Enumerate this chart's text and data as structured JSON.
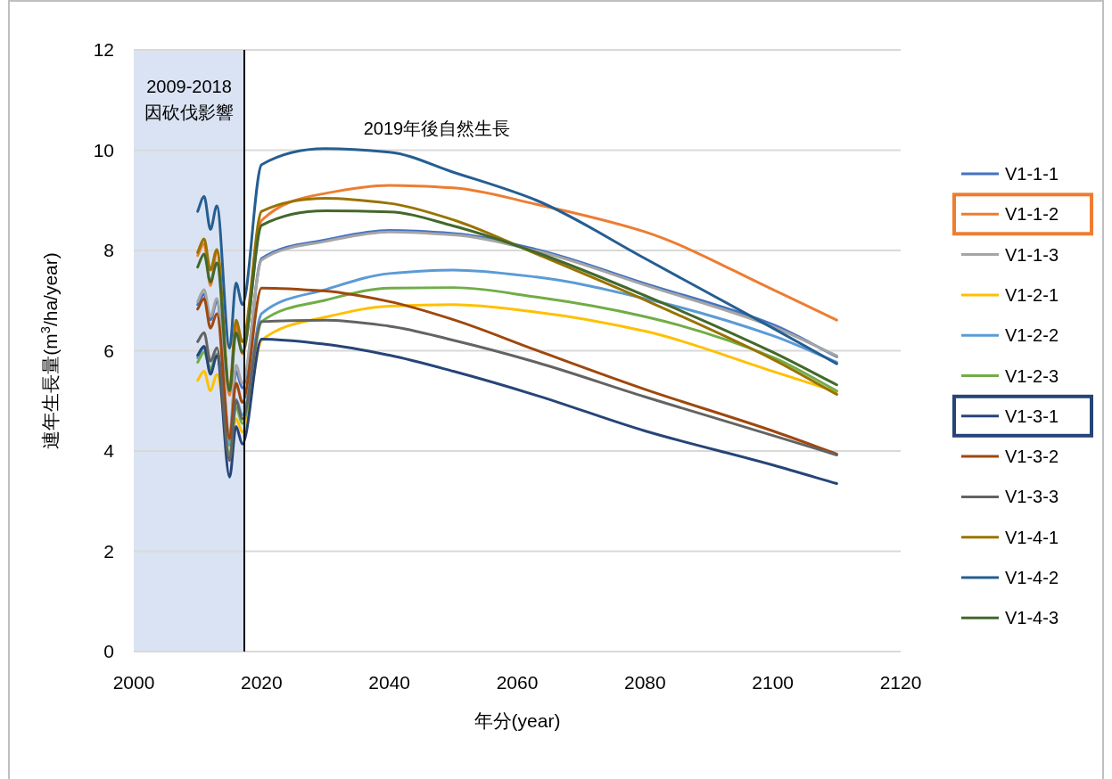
{
  "chart_data": {
    "type": "line",
    "xlabel": "年分(year)",
    "ylabel": "連年生長量(m$^{3}$/ha/year)",
    "x": [
      2010,
      2011,
      2012,
      2013,
      2015,
      2016,
      2017,
      2020,
      2030,
      2040,
      2050,
      2063,
      2080,
      2100,
      2110
    ],
    "xlim": [
      2000,
      2120
    ],
    "xticks": [
      2000,
      2020,
      2040,
      2060,
      2080,
      2100,
      2120
    ],
    "ylim": [
      0,
      12
    ],
    "yticks": [
      0,
      2,
      4,
      6,
      8,
      10,
      12
    ],
    "grid": "y",
    "legend": "right",
    "marker": "none",
    "line_style": "solid",
    "bands": [
      {
        "axis": "x",
        "from": 2000,
        "to": 2017.3,
        "label": "2009-2018 因砍伐影響",
        "color": "#dae3f3"
      }
    ],
    "ref_lines": [
      {
        "axis": "x",
        "value": 2017.3,
        "color": "#000000"
      }
    ],
    "annotations": [
      "2019年後自然生長"
    ],
    "series": [
      {
        "name": "V1-1-1",
        "color": "#4472c4",
        "values": [
          6.92,
          7.13,
          6.62,
          6.98,
          4.22,
          5.59,
          5.26,
          7.84,
          8.21,
          8.4,
          8.34,
          8.02,
          7.34,
          6.52,
          5.88
        ]
      },
      {
        "name": "V1-1-2",
        "color": "#ed7d31",
        "values": [
          7.9,
          8.14,
          7.3,
          7.99,
          5.11,
          6.5,
          5.94,
          8.6,
          9.14,
          9.3,
          9.25,
          8.92,
          8.37,
          7.22,
          6.61
        ]
      },
      {
        "name": "V1-1-3",
        "color": "#a5a5a5",
        "values": [
          6.98,
          7.22,
          6.68,
          7.04,
          4.34,
          5.71,
          5.35,
          7.81,
          8.18,
          8.37,
          8.31,
          7.99,
          7.31,
          6.48,
          5.9
        ]
      },
      {
        "name": "V1-2-1",
        "color": "#ffc000",
        "values": [
          5.41,
          5.59,
          5.2,
          5.53,
          4.11,
          4.64,
          4.38,
          6.21,
          6.67,
          6.89,
          6.92,
          6.77,
          6.39,
          5.59,
          5.18
        ]
      },
      {
        "name": "V1-2-2",
        "color": "#5b9bd5",
        "values": [
          5.86,
          6.06,
          5.62,
          5.94,
          4.11,
          5.03,
          4.72,
          6.74,
          7.22,
          7.54,
          7.61,
          7.47,
          7.04,
          6.3,
          5.77
        ]
      },
      {
        "name": "V1-2-3",
        "color": "#70ad47",
        "values": [
          5.77,
          5.97,
          5.65,
          5.91,
          3.93,
          4.88,
          4.55,
          6.58,
          7.01,
          7.25,
          7.26,
          7.07,
          6.68,
          5.87,
          5.2
        ]
      },
      {
        "name": "V1-3-1",
        "color": "#264478",
        "values": [
          5.91,
          6.09,
          5.53,
          5.9,
          3.48,
          4.49,
          4.14,
          6.23,
          6.13,
          5.91,
          5.59,
          5.11,
          4.4,
          3.72,
          3.35
        ]
      },
      {
        "name": "V1-3-2",
        "color": "#9e480e",
        "values": [
          6.83,
          7.04,
          6.45,
          6.74,
          4.25,
          5.35,
          4.97,
          7.25,
          7.19,
          6.98,
          6.62,
          6.01,
          5.23,
          4.4,
          3.94
        ]
      },
      {
        "name": "V1-3-3",
        "color": "#636363",
        "values": [
          6.18,
          6.36,
          5.79,
          6.06,
          3.81,
          5.0,
          4.64,
          6.58,
          6.61,
          6.49,
          6.21,
          5.77,
          5.08,
          4.31,
          3.92
        ]
      },
      {
        "name": "V1-4-1",
        "color": "#997300",
        "values": [
          7.96,
          8.23,
          7.61,
          8.02,
          5.26,
          6.61,
          6.18,
          8.78,
          9.04,
          8.94,
          8.61,
          7.93,
          7.01,
          5.83,
          5.13
        ]
      },
      {
        "name": "V1-4-2",
        "color": "#255e91",
        "values": [
          8.78,
          9.08,
          8.42,
          8.89,
          6.05,
          7.35,
          6.92,
          9.71,
          10.03,
          9.96,
          9.56,
          9.0,
          7.84,
          6.45,
          5.74
        ]
      },
      {
        "name": "V1-4-3",
        "color": "#43682b",
        "values": [
          7.67,
          7.93,
          7.37,
          7.75,
          5.2,
          6.36,
          5.97,
          8.5,
          8.79,
          8.77,
          8.49,
          7.96,
          7.1,
          5.97,
          5.32
        ]
      }
    ]
  }
}
